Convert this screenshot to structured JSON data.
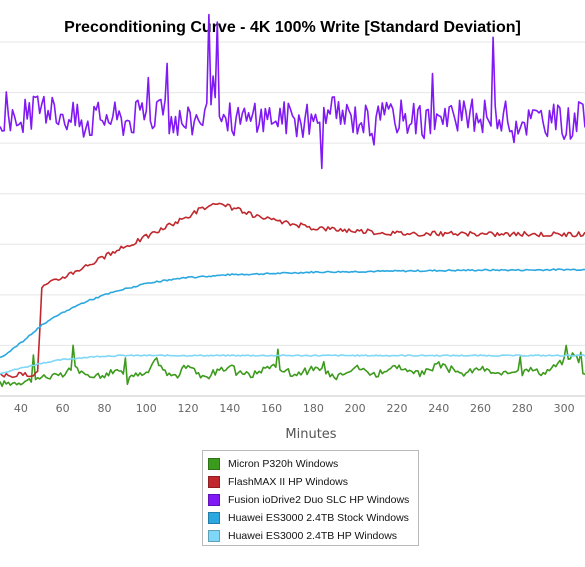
{
  "chart_data": {
    "type": "line",
    "title": "Preconditioning Curve - 4K 100% Write [Standard Deviation]",
    "xlabel": "Minutes",
    "ylabel": "",
    "x_ticks": [
      40,
      60,
      80,
      100,
      120,
      140,
      160,
      180,
      200,
      220,
      240,
      260,
      280,
      300
    ],
    "xlim": [
      30,
      310
    ],
    "ylim": [
      0,
      7
    ],
    "y_tick_labels_visible": false,
    "grid": "horizontal",
    "legend_position": "bottom-center",
    "series": [
      {
        "name": "Micron P320h Windows",
        "color": "#3c9a1c",
        "x": [
          30,
          40,
          48,
          50,
          60,
          66,
          70,
          75,
          80,
          85,
          90,
          100,
          105,
          110,
          115,
          120,
          125,
          130,
          140,
          150,
          160,
          170,
          180,
          190,
          200,
          210,
          220,
          230,
          240,
          250,
          260,
          270,
          280,
          290,
          300,
          305,
          310
        ],
        "y": [
          0.24,
          0.28,
          0.35,
          0.38,
          0.4,
          0.6,
          0.4,
          0.42,
          0.4,
          0.52,
          0.4,
          0.42,
          0.72,
          0.42,
          0.4,
          0.64,
          0.42,
          0.4,
          0.58,
          0.4,
          0.62,
          0.42,
          0.55,
          0.4,
          0.58,
          0.42,
          0.6,
          0.4,
          0.62,
          0.42,
          0.55,
          0.4,
          0.58,
          0.45,
          0.7,
          0.85,
          0.4
        ]
      },
      {
        "name": "FlashMAX II HP Windows",
        "color": "#c0282d",
        "x": [
          30,
          40,
          48,
          50,
          55,
          60,
          70,
          80,
          90,
          100,
          110,
          120,
          125,
          130,
          135,
          140,
          145,
          150,
          160,
          170,
          180,
          190,
          200,
          210,
          220,
          240,
          260,
          280,
          300,
          310
        ],
        "y": [
          0.4,
          0.42,
          0.45,
          2.15,
          2.25,
          2.35,
          2.55,
          2.75,
          2.95,
          3.15,
          3.35,
          3.55,
          3.68,
          3.75,
          3.77,
          3.74,
          3.67,
          3.58,
          3.47,
          3.4,
          3.33,
          3.3,
          3.27,
          3.24,
          3.22,
          3.21,
          3.2,
          3.2,
          3.2,
          3.2
        ]
      },
      {
        "name": "Fusion ioDrive2 Duo SLC HP Windows",
        "color": "#8019f4",
        "x": [
          30,
          40,
          50,
          60,
          70,
          80,
          90,
          100,
          110,
          120,
          130,
          140,
          150,
          160,
          170,
          180,
          190,
          200,
          210,
          220,
          230,
          240,
          250,
          260,
          270,
          280,
          290,
          300,
          310
        ],
        "y": [
          5.4,
          5.5,
          5.7,
          5.6,
          5.4,
          5.55,
          5.45,
          5.6,
          5.5,
          5.4,
          5.65,
          5.5,
          5.45,
          5.55,
          5.5,
          5.4,
          5.6,
          5.5,
          5.45,
          5.55,
          5.5,
          5.45,
          5.5,
          5.55,
          5.5,
          5.45,
          5.5,
          5.4,
          5.5
        ]
      },
      {
        "name": "Huawei ES3000 2.4TB Stock Windows",
        "color": "#2ba8e0",
        "x": [
          30,
          40,
          50,
          60,
          70,
          80,
          90,
          100,
          110,
          120,
          130,
          140,
          150,
          160,
          180,
          200,
          220,
          240,
          260,
          280,
          300,
          310
        ],
        "y": [
          0.75,
          1.05,
          1.4,
          1.65,
          1.85,
          2.0,
          2.12,
          2.22,
          2.29,
          2.34,
          2.37,
          2.4,
          2.41,
          2.42,
          2.45,
          2.46,
          2.47,
          2.48,
          2.49,
          2.49,
          2.5,
          2.5
        ]
      },
      {
        "name": "Huawei ES3000 2.4TB HP Windows",
        "color": "#7fd7f7",
        "x": [
          30,
          40,
          50,
          60,
          70,
          80,
          90,
          100,
          120,
          140,
          160,
          180,
          200,
          220,
          240,
          260,
          280,
          300,
          310
        ],
        "y": [
          0.45,
          0.55,
          0.65,
          0.72,
          0.76,
          0.79,
          0.8,
          0.8,
          0.8,
          0.8,
          0.8,
          0.8,
          0.8,
          0.8,
          0.8,
          0.8,
          0.8,
          0.8,
          0.8
        ]
      }
    ]
  }
}
